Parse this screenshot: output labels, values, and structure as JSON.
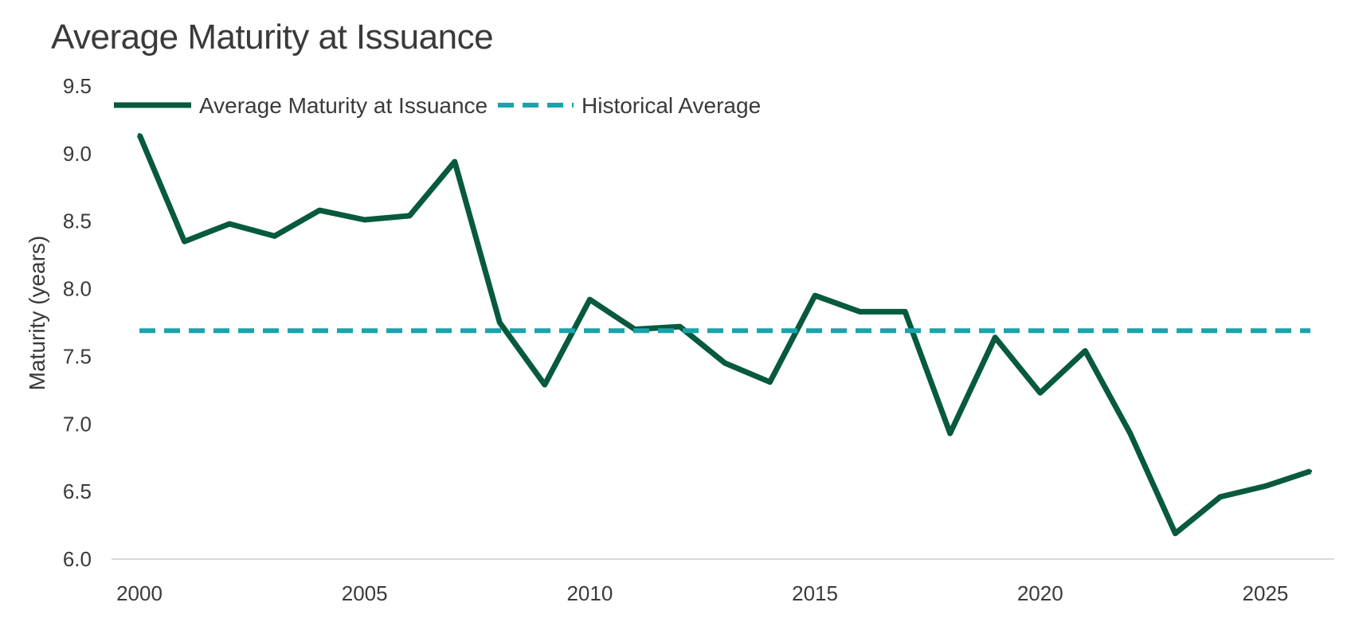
{
  "chart_data": {
    "type": "line",
    "title": "Average Maturity at Issuance",
    "ylabel": "Maturity (years)",
    "xlabel": "",
    "ylim": [
      6.0,
      9.5
    ],
    "xlim": [
      2000,
      2026
    ],
    "x_ticks": [
      "2000",
      "2005",
      "2010",
      "2015",
      "2020",
      "2025"
    ],
    "y_ticks": [
      "6.0",
      "6.5",
      "7.0",
      "7.5",
      "8.0",
      "8.5",
      "9.0",
      "9.5"
    ],
    "legend_position": "top-left",
    "grid": false,
    "x": [
      2000,
      2001,
      2002,
      2003,
      2004,
      2005,
      2006,
      2007,
      2008,
      2009,
      2010,
      2011,
      2012,
      2013,
      2014,
      2015,
      2016,
      2017,
      2018,
      2019,
      2020,
      2021,
      2022,
      2023,
      2024,
      2025,
      2026
    ],
    "series": [
      {
        "name": "Average Maturity at Issuance",
        "style": "solid",
        "color": "#075a3c",
        "values": [
          9.14,
          8.35,
          8.48,
          8.39,
          8.58,
          8.51,
          8.54,
          8.94,
          7.75,
          7.29,
          7.92,
          7.7,
          7.72,
          7.45,
          7.31,
          7.95,
          7.83,
          7.83,
          6.93,
          7.64,
          7.23,
          7.54,
          6.93,
          6.19,
          6.46,
          6.54,
          6.65
        ]
      },
      {
        "name": "Historical Average",
        "style": "dashed",
        "color": "#1aa3aa",
        "values": [
          7.69,
          7.69,
          7.69,
          7.69,
          7.69,
          7.69,
          7.69,
          7.69,
          7.69,
          7.69,
          7.69,
          7.69,
          7.69,
          7.69,
          7.69,
          7.69,
          7.69,
          7.69,
          7.69,
          7.69,
          7.69,
          7.69,
          7.69,
          7.69,
          7.69,
          7.69,
          7.69
        ]
      }
    ],
    "axis_color": "#d9d9d9"
  }
}
